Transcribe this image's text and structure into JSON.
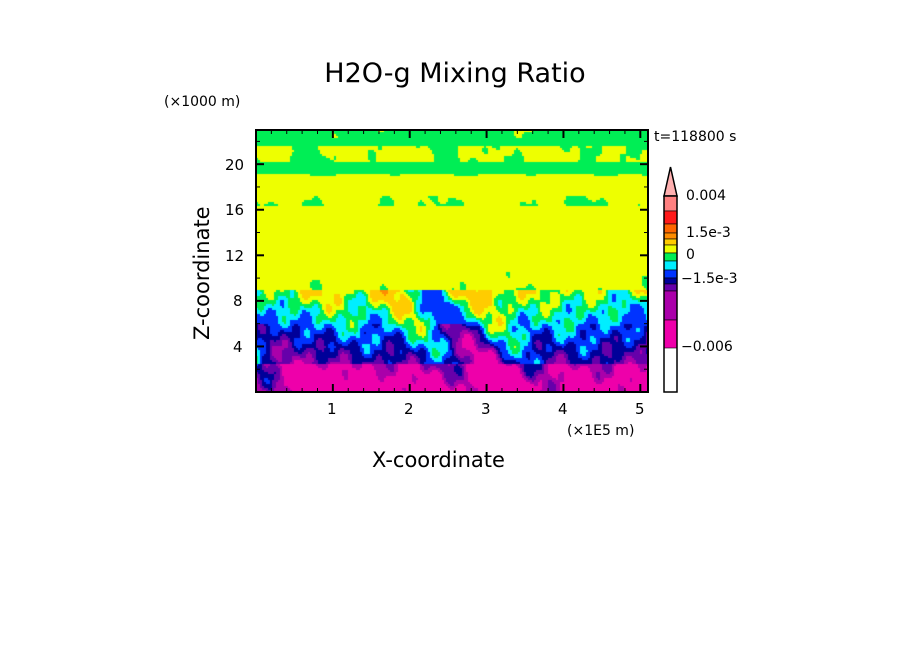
{
  "chart_data": {
    "type": "heatmap",
    "title": "H2O-g Mixing Ratio",
    "xlabel": "X-coordinate",
    "ylabel": "Z-coordinate",
    "x_unit": "(×1E5 m)",
    "y_unit": "(×1000 m)",
    "time_label": "t=118800 s",
    "xlim": [
      0,
      5.1
    ],
    "ylim": [
      0,
      23
    ],
    "x_ticks": [
      "1",
      "2",
      "3",
      "4",
      "5"
    ],
    "x_tick_values": [
      1,
      2,
      3,
      4,
      5
    ],
    "y_ticks": [
      "4",
      "8",
      "12",
      "16",
      "20"
    ],
    "y_tick_values": [
      4,
      8,
      12,
      16,
      20
    ],
    "colorbar": {
      "labels": [
        "0.004",
        "1.5e-3",
        "0",
        "−1.5e-3",
        "−0.006"
      ],
      "colors_top_to_bottom": [
        "#ffb0b0",
        "#ff8080",
        "#ff1a1a",
        "#ff6600",
        "#ff8c00",
        "#ffcc00",
        "#eeff00",
        "#00ee55",
        "#00eeff",
        "#0033ff",
        "#000099",
        "#6600aa",
        "#aa00aa",
        "#ee00aa"
      ]
    }
  }
}
